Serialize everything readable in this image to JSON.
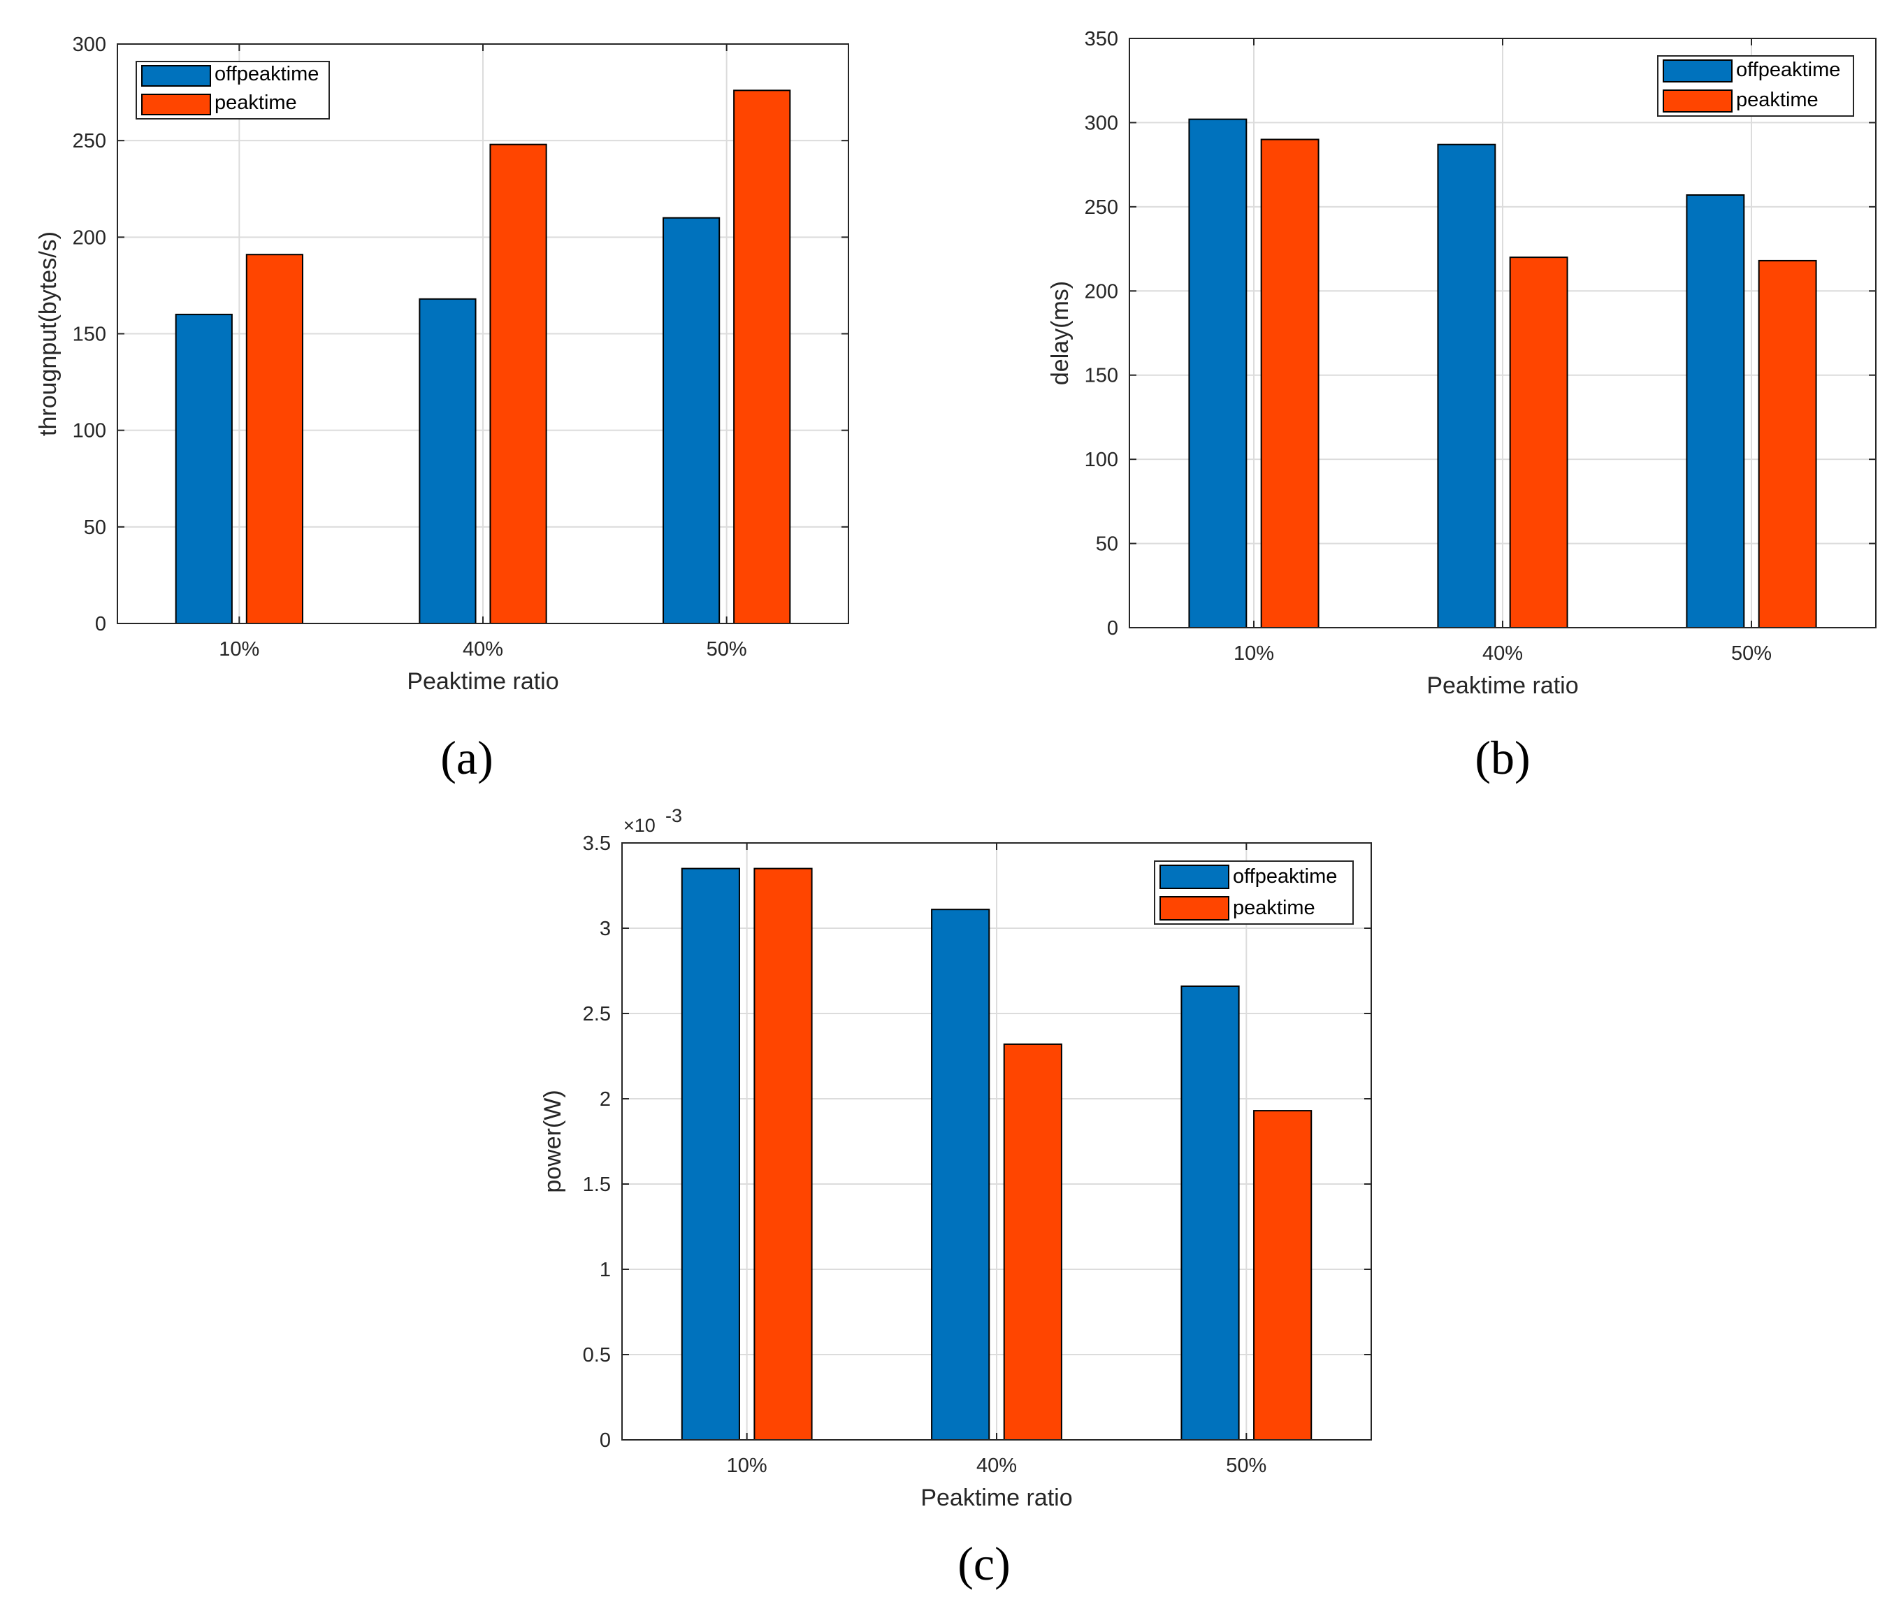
{
  "colors": {
    "offpeaktime": "#0072BD",
    "peaktime": "#FF4500",
    "grid": "#DCDCDC",
    "axis": "#262626"
  },
  "chart_data": [
    {
      "type": "bar",
      "panel_label": "(a)",
      "categories": [
        "10%",
        "40%",
        "50%"
      ],
      "series": [
        {
          "name": "offpeaktime",
          "values": [
            160,
            168,
            210
          ]
        },
        {
          "name": "peaktime",
          "values": [
            191,
            248,
            276
          ]
        }
      ],
      "xlabel": "Peaktime ratio",
      "ylabel": "througnput(bytes/s)",
      "ylim": [
        0,
        300
      ],
      "yticks": [
        0,
        50,
        100,
        150,
        200,
        250,
        300
      ],
      "ytick_labels": [
        "0",
        "50",
        "100",
        "150",
        "200",
        "250",
        "300"
      ],
      "grid": true,
      "legend": "top-left"
    },
    {
      "type": "bar",
      "panel_label": "(b)",
      "categories": [
        "10%",
        "40%",
        "50%"
      ],
      "series": [
        {
          "name": "offpeaktime",
          "values": [
            302,
            287,
            257
          ]
        },
        {
          "name": "peaktime",
          "values": [
            290,
            220,
            218
          ]
        }
      ],
      "xlabel": "Peaktime ratio",
      "ylabel": "delay(ms)",
      "ylim": [
        0,
        350
      ],
      "yticks": [
        0,
        50,
        100,
        150,
        200,
        250,
        300,
        350
      ],
      "ytick_labels": [
        "0",
        "50",
        "100",
        "150",
        "200",
        "250",
        "300",
        "350"
      ],
      "grid": true,
      "legend": "top-right"
    },
    {
      "type": "bar",
      "panel_label": "(c)",
      "categories": [
        "10%",
        "40%",
        "50%"
      ],
      "series": [
        {
          "name": "offpeaktime",
          "values": [
            0.00335,
            0.00311,
            0.00266
          ]
        },
        {
          "name": "peaktime",
          "values": [
            0.00335,
            0.00232,
            0.00193
          ]
        }
      ],
      "xlabel": "Peaktime ratio",
      "ylabel": "power(W)",
      "ylim": [
        0,
        0.0035
      ],
      "yticks": [
        0,
        0.0005,
        0.001,
        0.0015,
        0.002,
        0.0025,
        0.003,
        0.0035
      ],
      "ytick_labels": [
        "0",
        "0.5",
        "1",
        "1.5",
        "2",
        "2.5",
        "3",
        "3.5"
      ],
      "y_multiplier_base": "×10",
      "y_multiplier_exp": "-3",
      "grid": true,
      "legend": "top-right"
    }
  ]
}
